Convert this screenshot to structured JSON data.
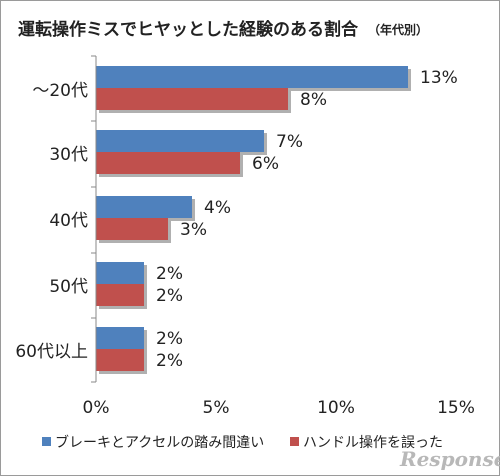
{
  "chart_data": {
    "type": "bar",
    "orientation": "horizontal",
    "title": "運転操作ミスでヒヤッとした経験のある割合",
    "subtitle": "（年代別）",
    "categories": [
      "～20代",
      "30代",
      "40代",
      "50代",
      "60代以上"
    ],
    "series": [
      {
        "name": "ブレーキとアクセルの踏み間違い",
        "color": "#4f81bd",
        "values": [
          13,
          7,
          4,
          2,
          2
        ],
        "labels": [
          "13%",
          "7%",
          "4%",
          "2%",
          "2%"
        ]
      },
      {
        "name": "ハンドル操作を誤った",
        "color": "#c0504d",
        "values": [
          8,
          6,
          3,
          2,
          2
        ],
        "labels": [
          "8%",
          "6%",
          "3%",
          "2%",
          "2%"
        ]
      }
    ],
    "xlim": [
      0,
      15
    ],
    "xticks": [
      0,
      5,
      10,
      15
    ],
    "xtick_labels": [
      "0%",
      "5%",
      "10%",
      "15%"
    ],
    "grid": false,
    "legend_position": "bottom"
  },
  "watermark": "Response."
}
